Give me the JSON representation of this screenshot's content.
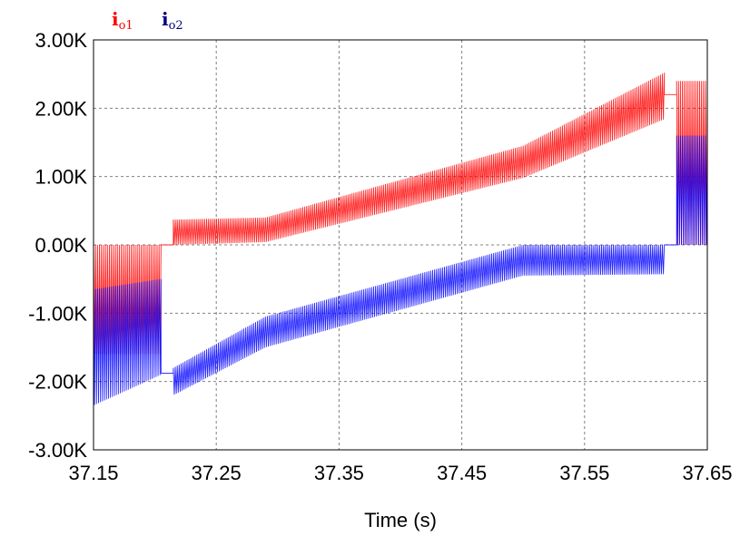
{
  "chart_data": {
    "type": "line",
    "title": "",
    "xlabel": "Time (s)",
    "ylabel": "",
    "xlim": [
      37.15,
      37.65
    ],
    "ylim": [
      -3000,
      3000
    ],
    "xticks": [
      37.15,
      37.25,
      37.35,
      37.45,
      37.55,
      37.65
    ],
    "xtick_labels": [
      "37.15",
      "37.25",
      "37.35",
      "37.45",
      "37.55",
      "37.65"
    ],
    "yticks": [
      3000,
      2000,
      1000,
      0,
      -1000,
      -2000,
      -3000
    ],
    "ytick_labels": [
      "3.00K",
      "2.00K",
      "1.00K",
      "0.00K",
      "-1.00K",
      "-2.00K",
      "-3.00K"
    ],
    "grid": true,
    "legend_position": "top-left",
    "series": [
      {
        "name": "i",
        "subscript": "o1",
        "color": "#ff0000",
        "segments": [
          {
            "x_range": [
              37.15,
              37.205
            ],
            "lower": [
              -1600,
              -1600
            ],
            "upper": [
              0,
              0
            ],
            "style": "oscillating"
          },
          {
            "x_range": [
              37.205,
              37.215
            ],
            "lower": [
              0,
              0
            ],
            "upper": [
              0,
              0
            ],
            "style": "flat"
          },
          {
            "x_range": [
              37.215,
              37.29
            ],
            "lower": [
              0,
              40
            ],
            "upper": [
              370,
              400
            ],
            "style": "oscillating"
          },
          {
            "x_range": [
              37.29,
              37.5
            ],
            "lower": [
              40,
              980
            ],
            "upper": [
              400,
              1450
            ],
            "style": "oscillating"
          },
          {
            "x_range": [
              37.5,
              37.615
            ],
            "lower": [
              980,
              1840
            ],
            "upper": [
              1450,
              2520
            ],
            "style": "oscillating"
          },
          {
            "x_range": [
              37.615,
              37.625
            ],
            "lower": [
              2200,
              2200
            ],
            "upper": [
              2200,
              2200
            ],
            "style": "flat"
          },
          {
            "x_range": [
              37.625,
              37.65
            ],
            "lower": [
              0,
              0
            ],
            "upper": [
              2400,
              2400
            ],
            "style": "oscillating"
          }
        ]
      },
      {
        "name": "i",
        "subscript": "o2",
        "color": "#0000ff",
        "segments": [
          {
            "x_range": [
              37.15,
              37.205
            ],
            "lower": [
              -2350,
              -1900
            ],
            "upper": [
              -650,
              -500
            ],
            "style": "oscillating"
          },
          {
            "x_range": [
              37.205,
              37.215
            ],
            "lower": [
              -1880,
              -1880
            ],
            "upper": [
              -1880,
              -1880
            ],
            "style": "flat"
          },
          {
            "x_range": [
              37.215,
              37.29
            ],
            "lower": [
              -2200,
              -1500
            ],
            "upper": [
              -1800,
              -1050
            ],
            "style": "oscillating"
          },
          {
            "x_range": [
              37.29,
              37.5
            ],
            "lower": [
              -1500,
              -450
            ],
            "upper": [
              -1050,
              0
            ],
            "style": "oscillating"
          },
          {
            "x_range": [
              37.5,
              37.615
            ],
            "lower": [
              -450,
              -430
            ],
            "upper": [
              0,
              0
            ],
            "style": "oscillating"
          },
          {
            "x_range": [
              37.615,
              37.625
            ],
            "lower": [
              0,
              0
            ],
            "upper": [
              0,
              0
            ],
            "style": "flat"
          },
          {
            "x_range": [
              37.625,
              37.65
            ],
            "lower": [
              0,
              0
            ],
            "upper": [
              1600,
              1600
            ],
            "style": "oscillating"
          }
        ]
      }
    ]
  }
}
